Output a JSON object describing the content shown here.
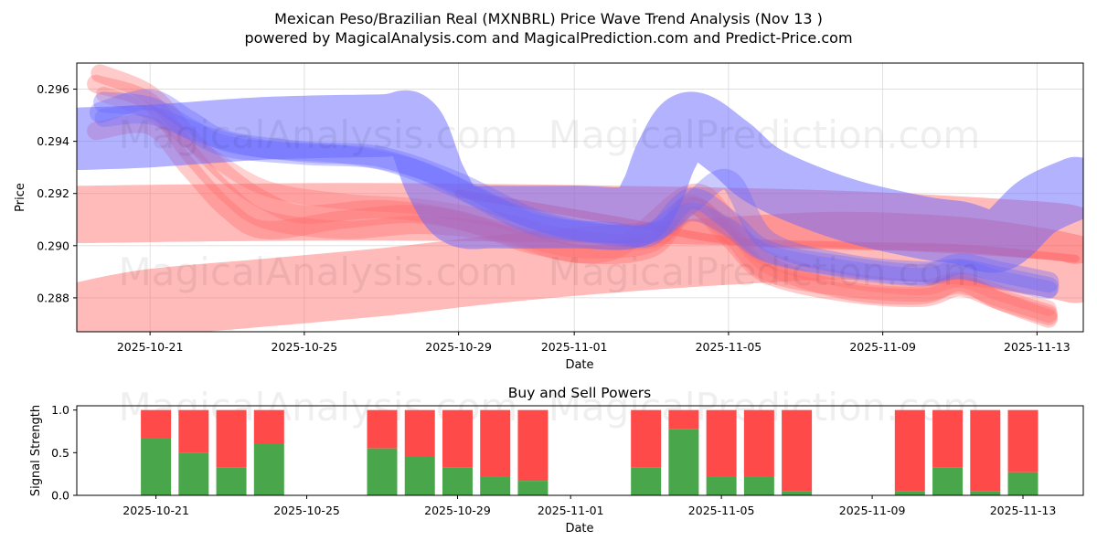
{
  "header": {
    "title_line1": "Mexican Peso/Brazilian Real (MXNBRL) Price Wave Trend Analysis (Nov 13 )",
    "title_line2": "powered by MagicalAnalysis.com and MagicalPrediction.com and Predict-Price.com"
  },
  "watermarks": [
    "MagicalAnalysis.com",
    "MagicalPrediction.com"
  ],
  "colors": {
    "buy": "#4aa64a",
    "sell": "#ff4a4a",
    "wave_red": "#ff6666",
    "wave_blue": "#6666ff"
  },
  "chart_data": [
    {
      "type": "area",
      "title": "",
      "xlabel": "Date",
      "ylabel": "Price",
      "x_range_days": [
        -1.9,
        24.2
      ],
      "date_origin": "2025-10-21",
      "ylim": [
        0.2867,
        0.297
      ],
      "x_ticks": [
        {
          "day": 0,
          "label": "2025-10-21"
        },
        {
          "day": 4,
          "label": "2025-10-25"
        },
        {
          "day": 8,
          "label": "2025-10-29"
        },
        {
          "day": 11,
          "label": "2025-11-01"
        },
        {
          "day": 15,
          "label": "2025-11-05"
        },
        {
          "day": 19,
          "label": "2025-11-09"
        },
        {
          "day": 23,
          "label": "2025-11-13"
        }
      ],
      "y_ticks": [
        {
          "value": 0.288,
          "label": "0.288"
        },
        {
          "value": 0.29,
          "label": "0.290"
        },
        {
          "value": 0.292,
          "label": "0.292"
        },
        {
          "value": 0.294,
          "label": "0.294"
        },
        {
          "value": 0.296,
          "label": "0.296"
        }
      ],
      "grid": true,
      "series": [
        {
          "name": "red-band-flat",
          "color": "red",
          "width": 0.0022,
          "opacity": 0.45,
          "points": [
            [
              -1.8,
              0.2912
            ],
            [
              5,
              0.2913
            ],
            [
              12,
              0.2912
            ],
            [
              18,
              0.291
            ],
            [
              23,
              0.2906
            ],
            [
              24,
              0.2904
            ]
          ]
        },
        {
          "name": "red-band-rising",
          "color": "red",
          "width": 0.0026,
          "opacity": 0.45,
          "points": [
            [
              -1.8,
              0.2873
            ],
            [
              0,
              0.2878
            ],
            [
              3,
              0.2882
            ],
            [
              6,
              0.2886
            ],
            [
              9,
              0.2891
            ],
            [
              12,
              0.2895
            ],
            [
              15,
              0.2898
            ],
            [
              18,
              0.29
            ],
            [
              21,
              0.2898
            ],
            [
              23,
              0.2894
            ],
            [
              24,
              0.2891
            ]
          ]
        },
        {
          "name": "red-wave-1",
          "color": "red",
          "width": 0.0007,
          "opacity": 0.35,
          "points": [
            [
              -1.4,
              0.2962
            ],
            [
              0,
              0.2955
            ],
            [
              1,
              0.2936
            ],
            [
              2,
              0.292
            ],
            [
              3,
              0.291
            ],
            [
              5,
              0.2906
            ],
            [
              7,
              0.2908
            ],
            [
              9,
              0.2905
            ],
            [
              11,
              0.2897
            ],
            [
              13,
              0.2899
            ],
            [
              14,
              0.2915
            ],
            [
              15,
              0.2905
            ],
            [
              16,
              0.289
            ],
            [
              18,
              0.2884
            ],
            [
              20,
              0.2882
            ],
            [
              21,
              0.2885
            ],
            [
              22,
              0.288
            ],
            [
              23.3,
              0.2874
            ]
          ]
        },
        {
          "name": "red-wave-2",
          "color": "red",
          "width": 0.0007,
          "opacity": 0.35,
          "points": [
            [
              -1.3,
              0.2966
            ],
            [
              0,
              0.2958
            ],
            [
              1,
              0.2942
            ],
            [
              2,
              0.2927
            ],
            [
              3,
              0.2917
            ],
            [
              4,
              0.2912
            ],
            [
              6,
              0.2914
            ],
            [
              8,
              0.291
            ],
            [
              10,
              0.29
            ],
            [
              12,
              0.2898
            ],
            [
              14,
              0.292
            ],
            [
              15,
              0.291
            ],
            [
              16,
              0.2893
            ],
            [
              18,
              0.2883
            ],
            [
              20,
              0.2881
            ],
            [
              21,
              0.2886
            ],
            [
              22,
              0.2879
            ],
            [
              23.3,
              0.2872
            ]
          ]
        },
        {
          "name": "red-wave-3",
          "color": "red",
          "width": 0.0007,
          "opacity": 0.35,
          "points": [
            [
              -1.4,
              0.2944
            ],
            [
              0,
              0.2946
            ],
            [
              1,
              0.293
            ],
            [
              2,
              0.2914
            ],
            [
              3,
              0.2906
            ],
            [
              5,
              0.291
            ],
            [
              7,
              0.2912
            ],
            [
              9,
              0.2906
            ],
            [
              11,
              0.2899
            ],
            [
              13,
              0.2901
            ],
            [
              14,
              0.2916
            ],
            [
              15,
              0.2903
            ],
            [
              16,
              0.2889
            ],
            [
              18,
              0.2882
            ],
            [
              20,
              0.288
            ],
            [
              21,
              0.2884
            ],
            [
              22,
              0.2879
            ],
            [
              23.3,
              0.2873
            ]
          ]
        },
        {
          "name": "red-wave-4",
          "color": "red",
          "width": 0.0006,
          "opacity": 0.3,
          "points": [
            [
              -1.2,
              0.2958
            ],
            [
              0,
              0.2951
            ],
            [
              1.5,
              0.2935
            ],
            [
              3,
              0.2922
            ],
            [
              5,
              0.2917
            ],
            [
              7,
              0.2915
            ],
            [
              9,
              0.291
            ],
            [
              11,
              0.2903
            ],
            [
              13,
              0.2902
            ],
            [
              14,
              0.2912
            ],
            [
              15,
              0.2907
            ],
            [
              16,
              0.2895
            ],
            [
              18,
              0.2887
            ],
            [
              20,
              0.2884
            ],
            [
              21,
              0.2887
            ],
            [
              22,
              0.2882
            ],
            [
              23.3,
              0.2876
            ]
          ]
        },
        {
          "name": "red-trend-line",
          "color": "red",
          "width": 0.0003,
          "opacity": 0.55,
          "points": [
            [
              8,
              0.292
            ],
            [
              12,
              0.291
            ],
            [
              15,
              0.2902
            ],
            [
              18,
              0.29
            ],
            [
              21,
              0.2899
            ],
            [
              24,
              0.2895
            ]
          ]
        },
        {
          "name": "blue-band-upper",
          "color": "blue",
          "width": 0.0024,
          "opacity": 0.5,
          "points": [
            [
              -1.8,
              0.2941
            ],
            [
              0,
              0.2942
            ],
            [
              3,
              0.2945
            ],
            [
              6,
              0.2946
            ],
            [
              6.8,
              0.2946
            ],
            [
              7.4,
              0.2925
            ],
            [
              8,
              0.2912
            ],
            [
              9,
              0.2911
            ],
            [
              11,
              0.2911
            ],
            [
              12.5,
              0.2911
            ],
            [
              13,
              0.292
            ],
            [
              13.4,
              0.2935
            ],
            [
              14,
              0.2947
            ],
            [
              15,
              0.2938
            ],
            [
              16,
              0.2926
            ],
            [
              18,
              0.2914
            ],
            [
              20,
              0.2907
            ],
            [
              21,
              0.2905
            ],
            [
              22,
              0.2902
            ],
            [
              23,
              0.2915
            ],
            [
              24,
              0.2922
            ]
          ]
        },
        {
          "name": "blue-wave-1",
          "color": "blue",
          "width": 0.0008,
          "opacity": 0.35,
          "points": [
            [
              -1.2,
              0.2955
            ],
            [
              0,
              0.2953
            ],
            [
              1,
              0.2945
            ],
            [
              2,
              0.2938
            ],
            [
              4,
              0.2935
            ],
            [
              6,
              0.2933
            ],
            [
              8,
              0.2922
            ],
            [
              10,
              0.2908
            ],
            [
              12,
              0.2905
            ],
            [
              13,
              0.2904
            ],
            [
              14,
              0.2918
            ],
            [
              15,
              0.291
            ],
            [
              16,
              0.2898
            ],
            [
              18,
              0.2892
            ],
            [
              20,
              0.2889
            ],
            [
              21,
              0.2893
            ],
            [
              22,
              0.289
            ],
            [
              23.3,
              0.2886
            ]
          ]
        },
        {
          "name": "blue-wave-2",
          "color": "blue",
          "width": 0.0008,
          "opacity": 0.35,
          "points": [
            [
              -1.3,
              0.2951
            ],
            [
              0,
              0.2956
            ],
            [
              1,
              0.2948
            ],
            [
              2,
              0.294
            ],
            [
              4,
              0.2936
            ],
            [
              6,
              0.2934
            ],
            [
              8,
              0.2924
            ],
            [
              10,
              0.291
            ],
            [
              12,
              0.2904
            ],
            [
              13,
              0.2905
            ],
            [
              14,
              0.2916
            ],
            [
              15,
              0.2925
            ],
            [
              16,
              0.2902
            ],
            [
              18,
              0.2893
            ],
            [
              20,
              0.289
            ],
            [
              21,
              0.2891
            ],
            [
              22,
              0.2888
            ],
            [
              23.3,
              0.2884
            ]
          ]
        },
        {
          "name": "blue-wave-3",
          "color": "blue",
          "width": 0.0007,
          "opacity": 0.3,
          "points": [
            [
              -1.2,
              0.2949
            ],
            [
              0,
              0.295
            ],
            [
              1.5,
              0.2942
            ],
            [
              3,
              0.2937
            ],
            [
              5,
              0.2935
            ],
            [
              7,
              0.2929
            ],
            [
              9,
              0.2915
            ],
            [
              11,
              0.2906
            ],
            [
              13,
              0.2905
            ],
            [
              14,
              0.2913
            ],
            [
              15,
              0.2907
            ],
            [
              16,
              0.2897
            ],
            [
              18,
              0.2891
            ],
            [
              20,
              0.2888
            ],
            [
              21,
              0.2891
            ],
            [
              22,
              0.2887
            ],
            [
              23.3,
              0.2883
            ]
          ]
        }
      ]
    },
    {
      "type": "bar",
      "title": "Buy and Sell Powers",
      "xlabel": "Date",
      "ylabel": "Signal Strength",
      "ylim": [
        0,
        1.05
      ],
      "y_ticks": [
        {
          "value": 0.0,
          "label": "0.0"
        },
        {
          "value": 0.5,
          "label": "0.5"
        },
        {
          "value": 1.0,
          "label": "1.0"
        }
      ],
      "x_ticks": [
        {
          "day": 0,
          "label": "2025-10-21"
        },
        {
          "day": 4,
          "label": "2025-10-25"
        },
        {
          "day": 8,
          "label": "2025-10-29"
        },
        {
          "day": 11,
          "label": "2025-11-01"
        },
        {
          "day": 15,
          "label": "2025-11-05"
        },
        {
          "day": 19,
          "label": "2025-11-09"
        },
        {
          "day": 23,
          "label": "2025-11-13"
        }
      ],
      "x_range_days": [
        -2.1,
        24.6
      ],
      "series": [
        {
          "name": "Buy",
          "color": "green"
        },
        {
          "name": "Sell",
          "color": "red"
        }
      ],
      "bars": [
        {
          "day": 0,
          "buy": 0.67
        },
        {
          "day": 1,
          "buy": 0.5
        },
        {
          "day": 2,
          "buy": 0.33
        },
        {
          "day": 3,
          "buy": 0.6
        },
        {
          "day": 6,
          "buy": 0.55
        },
        {
          "day": 7,
          "buy": 0.45
        },
        {
          "day": 8,
          "buy": 0.33
        },
        {
          "day": 9,
          "buy": 0.22
        },
        {
          "day": 10,
          "buy": 0.17
        },
        {
          "day": 13,
          "buy": 0.33
        },
        {
          "day": 14,
          "buy": 0.78
        },
        {
          "day": 15,
          "buy": 0.22
        },
        {
          "day": 16,
          "buy": 0.22
        },
        {
          "day": 17,
          "buy": 0.05
        },
        {
          "day": 20,
          "buy": 0.05
        },
        {
          "day": 21,
          "buy": 0.33
        },
        {
          "day": 22,
          "buy": 0.05
        },
        {
          "day": 23,
          "buy": 0.27
        }
      ]
    }
  ]
}
